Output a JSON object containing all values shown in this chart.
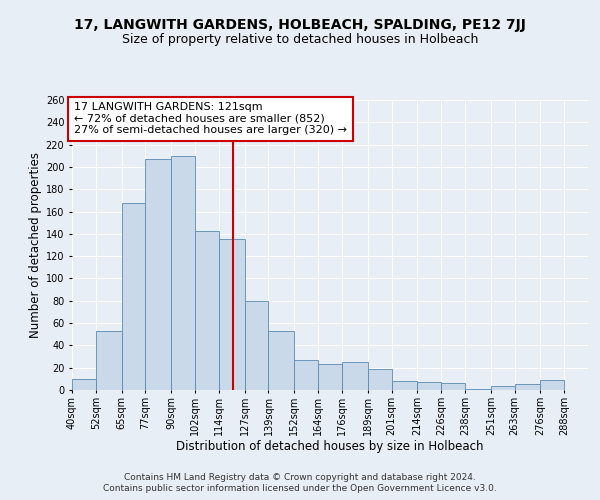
{
  "title": "17, LANGWITH GARDENS, HOLBEACH, SPALDING, PE12 7JJ",
  "subtitle": "Size of property relative to detached houses in Holbeach",
  "xlabel": "Distribution of detached houses by size in Holbeach",
  "ylabel": "Number of detached properties",
  "bar_labels": [
    "40sqm",
    "52sqm",
    "65sqm",
    "77sqm",
    "90sqm",
    "102sqm",
    "114sqm",
    "127sqm",
    "139sqm",
    "152sqm",
    "164sqm",
    "176sqm",
    "189sqm",
    "201sqm",
    "214sqm",
    "226sqm",
    "238sqm",
    "251sqm",
    "263sqm",
    "276sqm",
    "288sqm"
  ],
  "bar_values": [
    10,
    53,
    168,
    207,
    210,
    143,
    135,
    80,
    53,
    27,
    23,
    25,
    19,
    8,
    7,
    6,
    1,
    4,
    5,
    9
  ],
  "bar_edges": [
    40,
    52,
    65,
    77,
    90,
    102,
    114,
    127,
    139,
    152,
    164,
    176,
    189,
    201,
    214,
    226,
    238,
    251,
    263,
    276,
    288
  ],
  "bar_widths": [
    12,
    13,
    12,
    13,
    12,
    12,
    13,
    12,
    13,
    12,
    12,
    13,
    12,
    13,
    12,
    12,
    13,
    12,
    13,
    12
  ],
  "bar_color": "#c9d9ea",
  "bar_edge_color": "#5a8ab0",
  "vline_x": 121,
  "vline_color": "#cc0000",
  "annotation_title": "17 LANGWITH GARDENS: 121sqm",
  "annotation_line1": "← 72% of detached houses are smaller (852)",
  "annotation_line2": "27% of semi-detached houses are larger (320) →",
  "annotation_box_color": "#ffffff",
  "annotation_box_edge": "#cc0000",
  "ylim": [
    0,
    260
  ],
  "yticks": [
    0,
    20,
    40,
    60,
    80,
    100,
    120,
    140,
    160,
    180,
    200,
    220,
    240,
    260
  ],
  "footer1": "Contains HM Land Registry data © Crown copyright and database right 2024.",
  "footer2": "Contains public sector information licensed under the Open Government Licence v3.0.",
  "bg_color": "#e8eef5",
  "plot_bg_color": "#e8eef5",
  "title_fontsize": 10,
  "subtitle_fontsize": 9,
  "axis_label_fontsize": 8.5,
  "tick_fontsize": 7,
  "footer_fontsize": 6.5,
  "annot_fontsize": 8
}
